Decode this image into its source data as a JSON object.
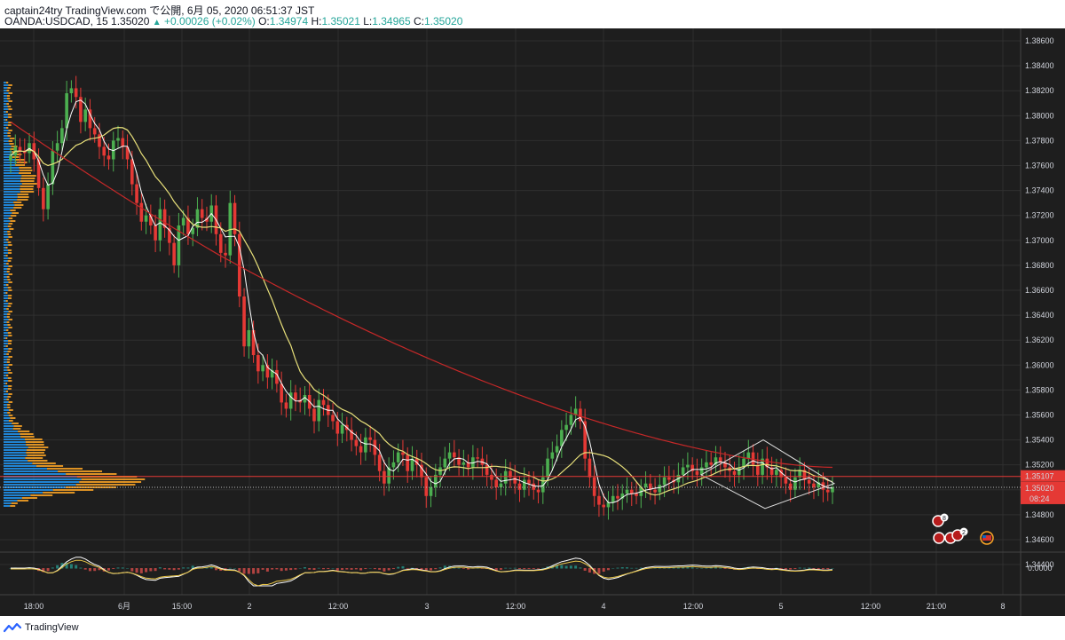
{
  "header": {
    "title": "captain24try TradingView.com で公開, 6月 05, 2020 06:51:37 JST",
    "symbol_line": "OANDA:USDCAD, 15 1.35020",
    "change": "+0.00026 (+0.02%)",
    "open_label": "O:",
    "open": "1.34974",
    "high_label": "H:",
    "high": "1.35021",
    "low_label": "L:",
    "low": "1.34965",
    "close_label": "C:",
    "close": "1.35020"
  },
  "footer": {
    "brand": "TradingView"
  },
  "colors": {
    "background": "#1e1e1e",
    "grid": "#2f2f2f",
    "up": "#4caf50",
    "down": "#e53935",
    "ma_fast": "#ffffff",
    "ma_mid": "#e8e07a",
    "ma_slow": "#c62828",
    "vp_blue": "#2196f3",
    "vp_orange": "#ffa726"
  },
  "price_axis": {
    "labels": [
      "1.38600",
      "1.38400",
      "1.38200",
      "1.38000",
      "1.37800",
      "1.37600",
      "1.37400",
      "1.37200",
      "1.37000",
      "1.36800",
      "1.36600",
      "1.36400",
      "1.36200",
      "1.36000",
      "1.35800",
      "1.35600",
      "1.35400",
      "1.35200",
      "1.35000",
      "1.34800",
      "1.34600",
      "1.34400"
    ],
    "current_price": "1.35020",
    "line_price": "1.35107",
    "countdown": "08:24"
  },
  "osc_axis": {
    "label": "0.0000"
  },
  "time_axis": {
    "labels": [
      "18:00",
      "6月",
      "15:00",
      "2",
      "12:00",
      "3",
      "12:00",
      "4",
      "12:00",
      "5",
      "12:00",
      "21:00",
      "8"
    ]
  },
  "event_markers": {
    "marker_a": "8",
    "marker_b": "10",
    "marker_c": "2"
  },
  "chart_data": {
    "type": "candlestick",
    "symbol": "OANDA:USDCAD",
    "interval": "15",
    "ylim": [
      1.345,
      1.387
    ],
    "closes": [
      1.3768,
      1.3775,
      1.3772,
      1.377,
      1.3778,
      1.3765,
      1.3742,
      1.3725,
      1.3745,
      1.3772,
      1.3778,
      1.379,
      1.3818,
      1.3822,
      1.3815,
      1.3795,
      1.3805,
      1.379,
      1.3785,
      1.3775,
      1.3768,
      1.3765,
      1.378,
      1.3782,
      1.3775,
      1.3765,
      1.3745,
      1.373,
      1.3715,
      1.372,
      1.3712,
      1.37,
      1.3725,
      1.371,
      1.3698,
      1.368,
      1.3712,
      1.3718,
      1.3705,
      1.371,
      1.3725,
      1.3718,
      1.3715,
      1.3728,
      1.3705,
      1.369,
      1.3688,
      1.373,
      1.3705,
      1.3655,
      1.3615,
      1.3628,
      1.3608,
      1.3595,
      1.36,
      1.359,
      1.3596,
      1.3585,
      1.357,
      1.3565,
      1.3578,
      1.3572,
      1.357,
      1.3576,
      1.3565,
      1.3555,
      1.3572,
      1.3568,
      1.356,
      1.3555,
      1.3545,
      1.3552,
      1.3548,
      1.354,
      1.3535,
      1.353,
      1.3542,
      1.354,
      1.3528,
      1.3515,
      1.3505,
      1.3518,
      1.3522,
      1.353,
      1.3528,
      1.3515,
      1.3525,
      1.352,
      1.351,
      1.3495,
      1.3502,
      1.3512,
      1.3518,
      1.3525,
      1.353,
      1.3526,
      1.352,
      1.3522,
      1.3518,
      1.3526,
      1.3525,
      1.352,
      1.3512,
      1.3508,
      1.3502,
      1.3505,
      1.3515,
      1.351,
      1.3505,
      1.35,
      1.3508,
      1.3505,
      1.35,
      1.3498,
      1.351,
      1.3525,
      1.353,
      1.3535,
      1.3548,
      1.3552,
      1.356,
      1.3565,
      1.3555,
      1.3525,
      1.351,
      1.3495,
      1.3488,
      1.3486,
      1.349,
      1.3495,
      1.3493,
      1.3497,
      1.35,
      1.3497,
      1.3495,
      1.3502,
      1.3505,
      1.35,
      1.3498,
      1.3504,
      1.351,
      1.3508,
      1.3506,
      1.3512,
      1.3518,
      1.352,
      1.3515,
      1.3512,
      1.3518,
      1.3522,
      1.352,
      1.3526,
      1.3522,
      1.3518,
      1.3515,
      1.3512,
      1.3518,
      1.3525,
      1.353,
      1.352,
      1.3512,
      1.3525,
      1.3518,
      1.3512,
      1.3516,
      1.351,
      1.3505,
      1.35,
      1.351,
      1.3516,
      1.3508,
      1.3505,
      1.3502,
      1.3506,
      1.35,
      1.3498,
      1.3502
    ]
  }
}
